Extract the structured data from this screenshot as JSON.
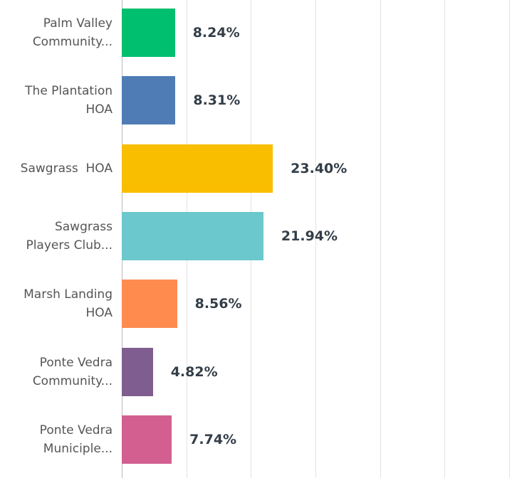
{
  "chart_data": {
    "type": "barh",
    "categories": [
      "Palm Valley\nCommunity...",
      "The Plantation\nHOA",
      "Sawgrass  HOA",
      "Sawgrass\nPlayers Club...",
      "Marsh Landing\nHOA",
      "Ponte Vedra\nCommunity...",
      "Ponte Vedra\nMuniciple..."
    ],
    "values": [
      8.24,
      8.31,
      23.4,
      21.94,
      8.56,
      4.82,
      7.74
    ],
    "value_labels": [
      "8.24%",
      "8.31%",
      "23.40%",
      "21.94%",
      "8.56%",
      "4.82%",
      "7.74%"
    ],
    "colors": [
      "#00bf6f",
      "#507cb6",
      "#f9be00",
      "#6bc8cd",
      "#ff8b4f",
      "#7f5d90",
      "#d25f90"
    ],
    "xlim": [
      0,
      60
    ],
    "xticks": [
      0,
      10,
      20,
      30,
      40,
      50,
      60
    ],
    "grid": true
  }
}
